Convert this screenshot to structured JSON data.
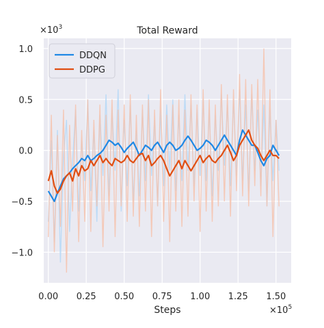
{
  "chart_data": {
    "type": "line",
    "title": "Total Reward",
    "xlabel": "Steps",
    "ylabel": "",
    "x_multiplier_label": "×10",
    "x_multiplier_exp": "5",
    "y_multiplier_label": "×10",
    "y_multiplier_exp": "3",
    "xlim": [
      -0.03,
      1.6
    ],
    "ylim": [
      -1.3,
      1.1
    ],
    "x_ticks": [
      0.0,
      0.25,
      0.5,
      0.75,
      1.0,
      1.25,
      1.5
    ],
    "x_tick_labels": [
      "0.00",
      "0.25",
      "0.50",
      "0.75",
      "1.00",
      "1.25",
      "1.50"
    ],
    "y_ticks": [
      -1.0,
      -0.5,
      0.0,
      0.5,
      1.0
    ],
    "y_tick_labels": [
      "−1.0",
      "−0.5",
      "0.0",
      "0.5",
      "1.0"
    ],
    "grid": true,
    "legend_position": "top-left",
    "background": "#eaeaf2",
    "series": [
      {
        "name": "DDQN",
        "color": "#1f88e5",
        "raw_color": "#b5d8f7",
        "x": [
          0.0,
          0.02,
          0.04,
          0.06,
          0.08,
          0.1,
          0.12,
          0.14,
          0.16,
          0.18,
          0.2,
          0.22,
          0.24,
          0.26,
          0.28,
          0.3,
          0.32,
          0.34,
          0.36,
          0.38,
          0.4,
          0.42,
          0.44,
          0.46,
          0.48,
          0.5,
          0.52,
          0.54,
          0.56,
          0.58,
          0.6,
          0.62,
          0.64,
          0.66,
          0.68,
          0.7,
          0.72,
          0.74,
          0.76,
          0.78,
          0.8,
          0.82,
          0.84,
          0.86,
          0.88,
          0.9,
          0.92,
          0.94,
          0.96,
          0.98,
          1.0,
          1.02,
          1.04,
          1.06,
          1.08,
          1.1,
          1.12,
          1.14,
          1.16,
          1.18,
          1.2,
          1.22,
          1.24,
          1.26,
          1.28,
          1.3,
          1.32,
          1.34,
          1.36,
          1.38,
          1.4,
          1.42,
          1.44,
          1.46,
          1.48,
          1.5,
          1.52
        ],
        "values": [
          -0.4,
          -0.45,
          -0.5,
          -0.42,
          -0.35,
          -0.28,
          -0.25,
          -0.22,
          -0.18,
          -0.15,
          -0.12,
          -0.08,
          -0.1,
          -0.05,
          -0.1,
          -0.08,
          -0.05,
          -0.03,
          0.0,
          0.05,
          0.1,
          0.08,
          0.05,
          0.07,
          0.03,
          -0.02,
          0.02,
          0.05,
          0.08,
          0.02,
          -0.05,
          0.0,
          0.05,
          0.03,
          0.0,
          0.05,
          0.08,
          0.03,
          -0.02,
          0.05,
          0.08,
          0.05,
          0.0,
          0.02,
          0.05,
          0.1,
          0.14,
          0.1,
          0.05,
          0.0,
          0.02,
          0.05,
          0.1,
          0.08,
          0.05,
          0.0,
          0.05,
          0.1,
          0.15,
          0.1,
          0.05,
          0.0,
          -0.05,
          0.1,
          0.2,
          0.15,
          0.1,
          0.05,
          0.05,
          -0.02,
          -0.1,
          -0.15,
          -0.08,
          -0.05,
          0.05,
          0.0,
          -0.05
        ],
        "raw_values": [
          -0.7,
          0.1,
          -0.9,
          0.2,
          -1.1,
          -0.05,
          0.3,
          -0.8,
          -0.1,
          0.4,
          -0.6,
          0.1,
          -0.3,
          0.5,
          -0.4,
          0.2,
          -0.7,
          0.35,
          -0.25,
          0.55,
          -0.45,
          0.4,
          -0.2,
          0.6,
          -0.6,
          0.3,
          -0.35,
          0.45,
          -0.5,
          0.2,
          -0.45,
          0.4,
          -0.3,
          0.55,
          -0.25,
          0.3,
          -0.55,
          0.4,
          -0.35,
          0.45,
          -0.2,
          0.5,
          -0.4,
          0.35,
          -0.3,
          0.55,
          -0.2,
          0.45,
          -0.35,
          0.4,
          -0.25,
          0.5,
          -0.3,
          0.4,
          -0.45,
          0.35,
          -0.2,
          0.55,
          -0.15,
          0.45,
          -0.35,
          0.5,
          -0.25,
          0.6,
          -0.3,
          0.45,
          -0.4,
          0.55,
          -0.2,
          0.4,
          -0.35,
          0.45,
          -0.55,
          0.4,
          -0.3,
          0.3,
          -0.2
        ]
      },
      {
        "name": "DDPG",
        "color": "#e04e12",
        "raw_color": "#f6c3ae",
        "x": [
          0.0,
          0.02,
          0.04,
          0.06,
          0.08,
          0.1,
          0.12,
          0.14,
          0.16,
          0.18,
          0.2,
          0.22,
          0.24,
          0.26,
          0.28,
          0.3,
          0.32,
          0.34,
          0.36,
          0.38,
          0.4,
          0.42,
          0.44,
          0.46,
          0.48,
          0.5,
          0.52,
          0.54,
          0.56,
          0.58,
          0.6,
          0.62,
          0.64,
          0.66,
          0.68,
          0.7,
          0.72,
          0.74,
          0.76,
          0.78,
          0.8,
          0.82,
          0.84,
          0.86,
          0.88,
          0.9,
          0.92,
          0.94,
          0.96,
          0.98,
          1.0,
          1.02,
          1.04,
          1.06,
          1.08,
          1.1,
          1.12,
          1.14,
          1.16,
          1.18,
          1.2,
          1.22,
          1.24,
          1.26,
          1.28,
          1.3,
          1.32,
          1.34,
          1.36,
          1.38,
          1.4,
          1.42,
          1.44,
          1.46,
          1.48,
          1.5,
          1.52
        ],
        "values": [
          -0.3,
          -0.2,
          -0.35,
          -0.42,
          -0.38,
          -0.3,
          -0.25,
          -0.22,
          -0.3,
          -0.18,
          -0.25,
          -0.15,
          -0.2,
          -0.18,
          -0.1,
          -0.15,
          -0.1,
          -0.05,
          -0.12,
          -0.08,
          -0.12,
          -0.15,
          -0.08,
          -0.1,
          -0.12,
          -0.1,
          -0.05,
          -0.1,
          -0.12,
          -0.08,
          -0.04,
          -0.03,
          -0.1,
          -0.05,
          -0.15,
          -0.12,
          -0.08,
          -0.05,
          -0.1,
          -0.18,
          -0.25,
          -0.2,
          -0.15,
          -0.1,
          -0.18,
          -0.1,
          -0.15,
          -0.2,
          -0.15,
          -0.1,
          -0.05,
          -0.12,
          -0.08,
          -0.05,
          -0.1,
          -0.12,
          -0.08,
          -0.05,
          0.0,
          0.05,
          -0.02,
          -0.1,
          -0.05,
          0.05,
          0.1,
          0.15,
          0.2,
          0.1,
          0.05,
          0.02,
          -0.05,
          -0.1,
          -0.05,
          0.0,
          -0.05,
          -0.05,
          -0.08
        ],
        "raw_values": [
          -0.85,
          0.35,
          -1.0,
          0.15,
          -0.75,
          0.4,
          -1.2,
          0.25,
          -0.6,
          0.45,
          -0.9,
          0.2,
          -0.7,
          0.5,
          -0.8,
          0.3,
          -0.55,
          0.45,
          -0.95,
          0.35,
          -0.6,
          0.5,
          -0.85,
          0.4,
          -0.55,
          0.45,
          -0.7,
          0.55,
          -0.65,
          0.35,
          -0.75,
          0.45,
          -0.6,
          0.5,
          -0.85,
          0.4,
          -0.55,
          0.6,
          -0.7,
          0.35,
          -0.9,
          0.45,
          -0.6,
          0.5,
          -0.75,
          0.4,
          -0.65,
          0.55,
          -0.5,
          0.45,
          -0.8,
          0.6,
          -0.6,
          0.5,
          -0.7,
          0.45,
          -0.55,
          0.65,
          -0.5,
          0.55,
          -0.65,
          0.6,
          -0.4,
          0.75,
          -0.45,
          0.7,
          -0.55,
          0.65,
          -0.35,
          0.7,
          -0.45,
          1.0,
          -0.55,
          0.6,
          -0.85,
          0.3,
          -0.55
        ]
      }
    ]
  }
}
